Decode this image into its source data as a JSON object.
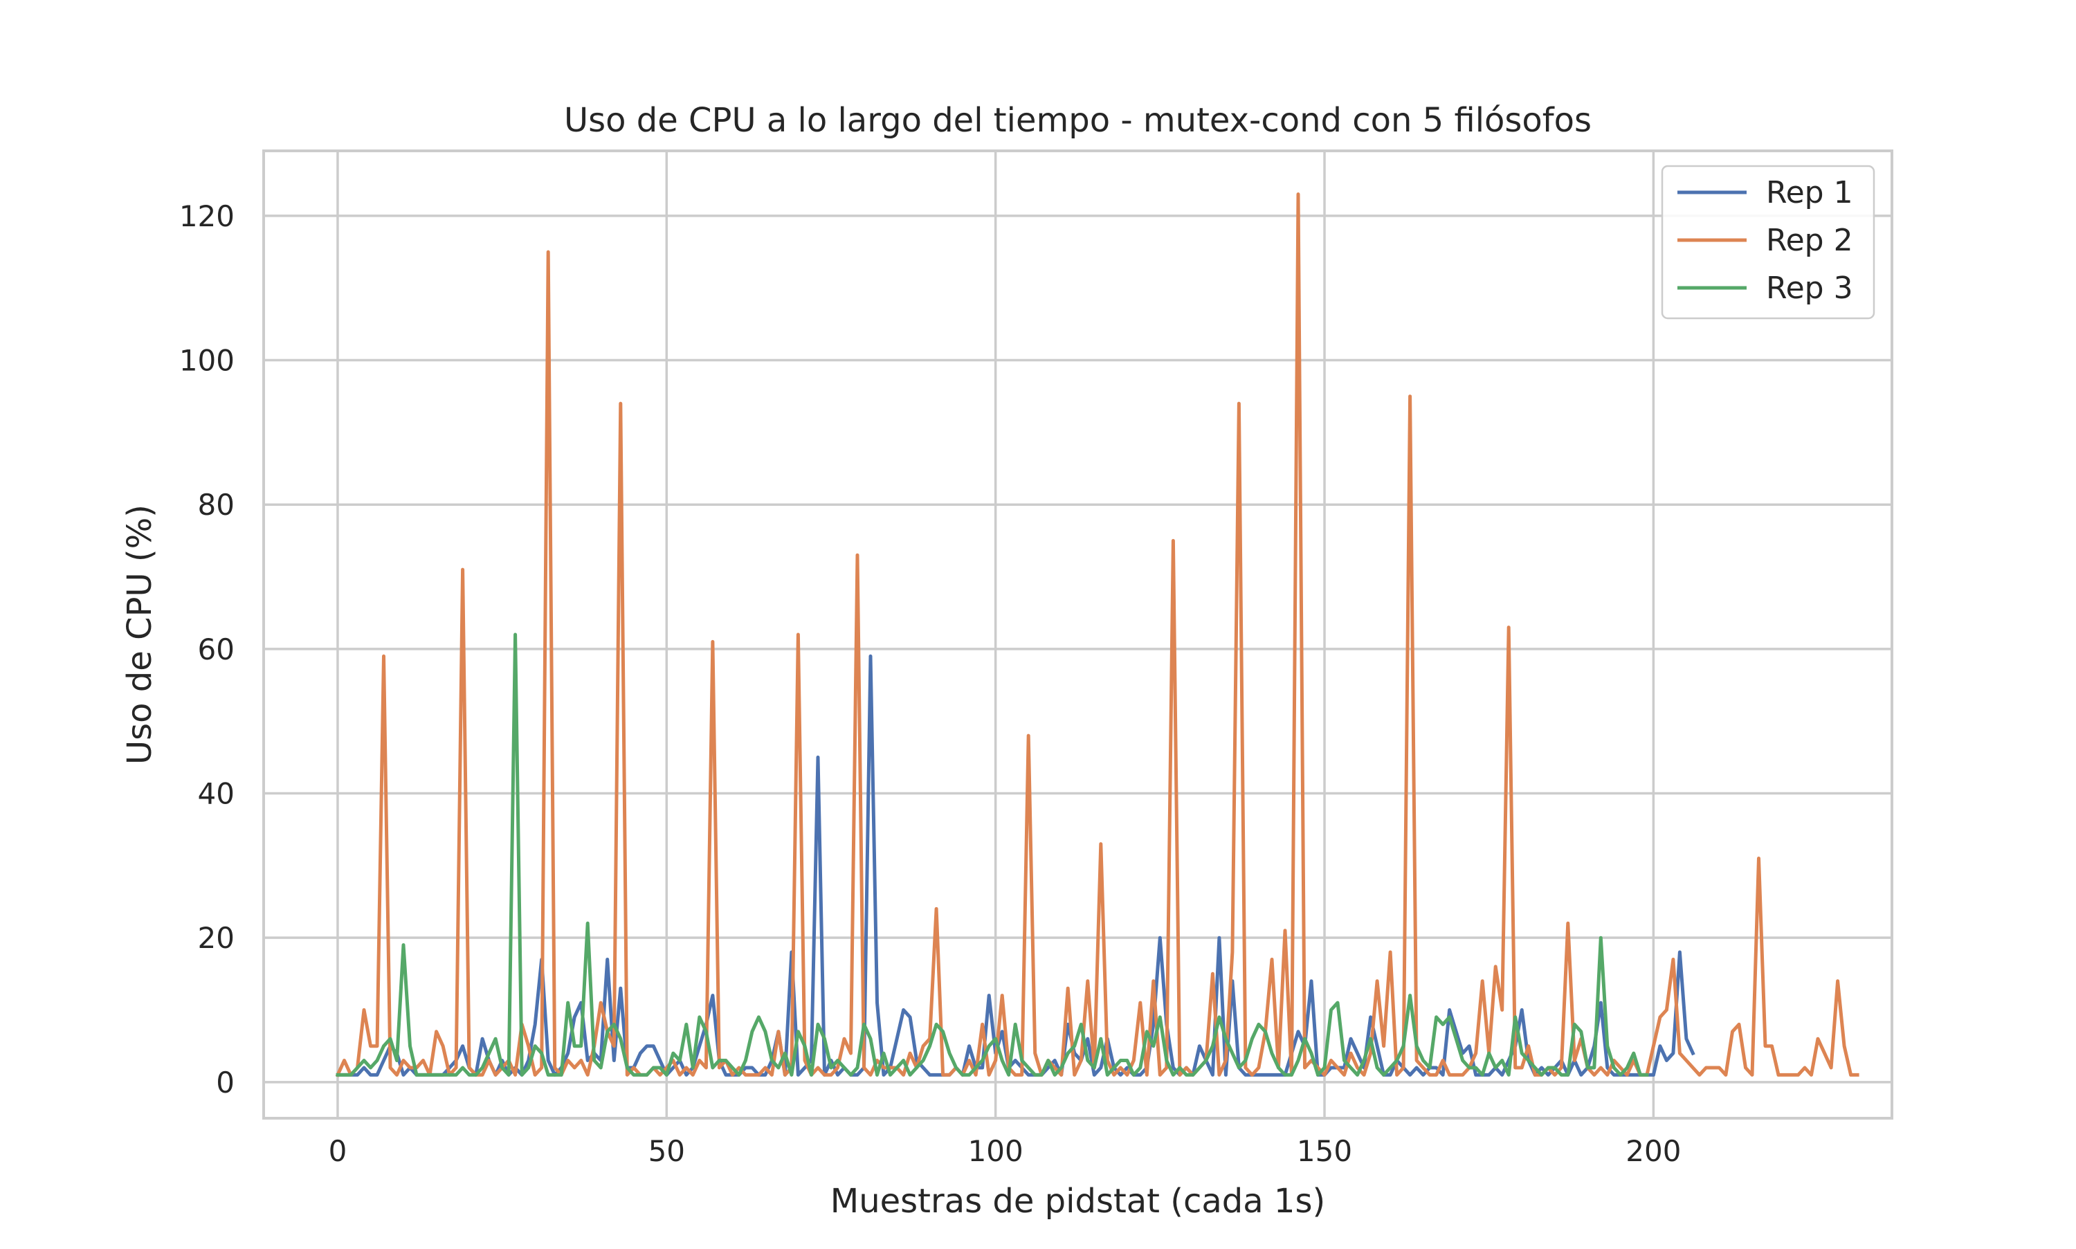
{
  "chart_data": {
    "type": "line",
    "title": "Uso de CPU a lo largo del tiempo - mutex-cond con 5 filósofos",
    "xlabel": "Muestras de pidstat (cada 1s)",
    "ylabel": "Uso de CPU (%)",
    "xlim": [
      -11.25,
      236.25
    ],
    "ylim": [
      -5,
      129
    ],
    "xticks": [
      0,
      50,
      100,
      150,
      200
    ],
    "yticks": [
      0,
      20,
      40,
      60,
      80,
      100,
      120
    ],
    "grid": true,
    "legend_position": "top-right",
    "series": [
      {
        "name": "Rep 1",
        "color": "#4c72b0",
        "values": [
          1,
          1,
          1,
          1,
          2,
          1,
          1,
          3,
          5,
          4,
          1,
          2,
          1,
          1,
          1,
          1,
          1,
          2,
          3,
          5,
          2,
          1,
          6,
          3,
          1,
          3,
          1,
          2,
          1,
          3,
          8,
          17,
          3,
          1,
          2,
          4,
          9,
          11,
          3,
          4,
          3,
          17,
          3,
          13,
          2,
          2,
          4,
          5,
          5,
          3,
          1,
          2,
          3,
          1,
          2,
          5,
          8,
          12,
          3,
          1,
          1,
          1,
          2,
          2,
          1,
          1,
          3,
          7,
          1,
          18,
          1,
          2,
          3,
          45,
          1,
          3,
          1,
          2,
          1,
          1,
          2,
          59,
          11,
          1,
          2,
          6,
          10,
          9,
          3,
          2,
          1,
          1,
          1,
          1,
          2,
          1,
          5,
          2,
          2,
          12,
          4,
          7,
          2,
          3,
          2,
          1,
          1,
          1,
          2,
          3,
          1,
          8,
          4,
          3,
          6,
          1,
          2,
          6,
          2,
          1,
          2,
          1,
          1,
          2,
          8,
          20,
          8,
          2,
          1,
          2,
          1,
          5,
          3,
          1,
          20,
          1,
          14,
          2,
          1,
          1,
          1,
          1,
          1,
          1,
          1,
          4,
          7,
          5,
          14,
          1,
          1,
          2,
          2,
          2,
          6,
          4,
          2,
          9,
          5,
          1,
          1,
          3,
          2,
          1,
          2,
          1,
          2,
          2,
          1,
          10,
          7,
          4,
          5,
          1,
          1,
          1,
          2,
          1,
          3,
          5,
          10,
          3,
          1,
          2,
          1,
          2,
          3,
          1,
          3,
          1,
          2,
          5,
          11,
          2,
          1,
          1,
          1,
          1,
          1,
          1,
          1,
          5,
          3,
          4,
          18,
          6,
          4
        ]
      },
      {
        "name": "Rep 2",
        "color": "#dd8452",
        "values": [
          1,
          3,
          1,
          2,
          10,
          5,
          5,
          59,
          2,
          1,
          3,
          2,
          2,
          3,
          1,
          7,
          5,
          1,
          2,
          71,
          2,
          1,
          1,
          3,
          1,
          2,
          3,
          1,
          8,
          5,
          1,
          2,
          115,
          2,
          1,
          3,
          2,
          3,
          1,
          5,
          11,
          7,
          5,
          94,
          1,
          2,
          1,
          1,
          2,
          1,
          2,
          3,
          1,
          2,
          1,
          3,
          2,
          61,
          2,
          3,
          1,
          2,
          1,
          1,
          1,
          2,
          1,
          7,
          1,
          2,
          62,
          3,
          1,
          2,
          1,
          1,
          2,
          6,
          4,
          73,
          2,
          1,
          3,
          2,
          2,
          2,
          1,
          4,
          2,
          5,
          6,
          24,
          1,
          1,
          2,
          1,
          3,
          1,
          8,
          1,
          3,
          12,
          2,
          1,
          1,
          48,
          4,
          1,
          3,
          2,
          1,
          13,
          1,
          3,
          14,
          2,
          33,
          3,
          1,
          2,
          1,
          3,
          11,
          1,
          14,
          1,
          2,
          75,
          1,
          2,
          1,
          2,
          3,
          15,
          1,
          3,
          18,
          94,
          2,
          1,
          2,
          7,
          17,
          2,
          21,
          1,
          123,
          2,
          3,
          2,
          1,
          3,
          2,
          1,
          4,
          2,
          1,
          4,
          14,
          5,
          18,
          1,
          2,
          95,
          3,
          2,
          1,
          1,
          3,
          1,
          1,
          1,
          2,
          4,
          14,
          4,
          16,
          10,
          63,
          2,
          2,
          5,
          1,
          1,
          2,
          1,
          2,
          22,
          3,
          6,
          2,
          1,
          2,
          1,
          3,
          2,
          1,
          3,
          1,
          1,
          5,
          9,
          10,
          17,
          4,
          3,
          2,
          1,
          2,
          2,
          2,
          1,
          7,
          8,
          2,
          1,
          31,
          5,
          5,
          1,
          1,
          1,
          1,
          2,
          1,
          6,
          4,
          2,
          14,
          5,
          1,
          1
        ]
      },
      {
        "name": "Rep 3",
        "color": "#55a868",
        "values": [
          1,
          1,
          1,
          2,
          3,
          2,
          3,
          5,
          6,
          3,
          19,
          5,
          1,
          1,
          1,
          1,
          1,
          1,
          1,
          2,
          1,
          1,
          2,
          4,
          6,
          2,
          1,
          62,
          1,
          2,
          5,
          4,
          1,
          1,
          1,
          11,
          5,
          5,
          22,
          3,
          2,
          7,
          8,
          6,
          2,
          1,
          1,
          1,
          2,
          2,
          1,
          4,
          3,
          8,
          2,
          9,
          7,
          2,
          3,
          3,
          2,
          1,
          3,
          7,
          9,
          7,
          3,
          2,
          4,
          1,
          7,
          5,
          1,
          8,
          6,
          2,
          3,
          2,
          1,
          2,
          8,
          6,
          1,
          4,
          1,
          2,
          3,
          1,
          2,
          3,
          5,
          8,
          7,
          4,
          2,
          1,
          1,
          2,
          3,
          5,
          6,
          3,
          1,
          8,
          3,
          2,
          1,
          1,
          3,
          1,
          2,
          4,
          5,
          8,
          3,
          2,
          6,
          1,
          2,
          3,
          3,
          1,
          2,
          7,
          5,
          9,
          3,
          1,
          2,
          1,
          1,
          2,
          3,
          5,
          9,
          6,
          4,
          2,
          3,
          6,
          8,
          7,
          4,
          2,
          1,
          1,
          3,
          6,
          4,
          1,
          2,
          10,
          11,
          3,
          2,
          1,
          3,
          6,
          2,
          1,
          2,
          3,
          5,
          12,
          5,
          3,
          2,
          9,
          8,
          9,
          6,
          3,
          2,
          2,
          1,
          4,
          2,
          3,
          1,
          9,
          4,
          3,
          2,
          1,
          2,
          2,
          1,
          1,
          8,
          7,
          2,
          2,
          20,
          5,
          2,
          1,
          2,
          4,
          1,
          1
        ]
      }
    ]
  }
}
